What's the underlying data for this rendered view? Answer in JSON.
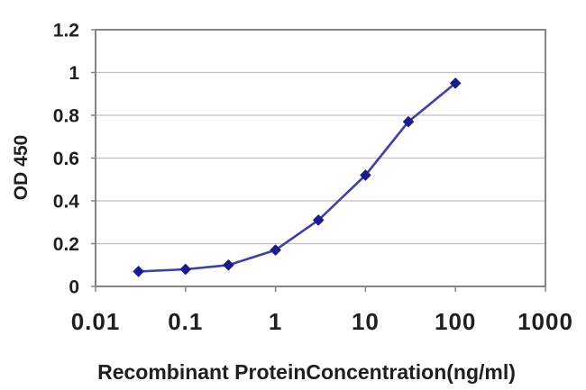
{
  "chart_data": {
    "type": "line",
    "title": "",
    "xlabel": "Recombinant ProteinConcentration(ng/ml)",
    "ylabel": "OD 450",
    "x_scale": "log",
    "xlim": [
      0.01,
      1000
    ],
    "ylim": [
      0,
      1.2
    ],
    "x_ticks": [
      0.01,
      0.1,
      1,
      10,
      100,
      1000
    ],
    "x_tick_labels": [
      "0.01",
      "0.1",
      "1",
      "10",
      "100",
      "1000"
    ],
    "y_ticks": [
      0,
      0.2,
      0.4,
      0.6,
      0.8,
      1,
      1.2
    ],
    "y_tick_labels": [
      "0",
      "0.2",
      "0.4",
      "0.6",
      "0.8",
      "1",
      "1.2"
    ],
    "grid": "horizontal",
    "legend": "none",
    "colors": {
      "background": "#ffffff",
      "grid": "#bfbfbf",
      "axis": "#848484",
      "text": "#1f1f1f"
    },
    "series": [
      {
        "name": "OD 450",
        "marker": "diamond",
        "line_color": "#4040a2",
        "marker_color": "#1b1b8a",
        "points": [
          {
            "x": 0.03,
            "y": 0.07
          },
          {
            "x": 0.1,
            "y": 0.08
          },
          {
            "x": 0.3,
            "y": 0.1
          },
          {
            "x": 1,
            "y": 0.17
          },
          {
            "x": 3,
            "y": 0.31
          },
          {
            "x": 10,
            "y": 0.52
          },
          {
            "x": 30,
            "y": 0.77
          },
          {
            "x": 100,
            "y": 0.95
          }
        ]
      }
    ]
  }
}
